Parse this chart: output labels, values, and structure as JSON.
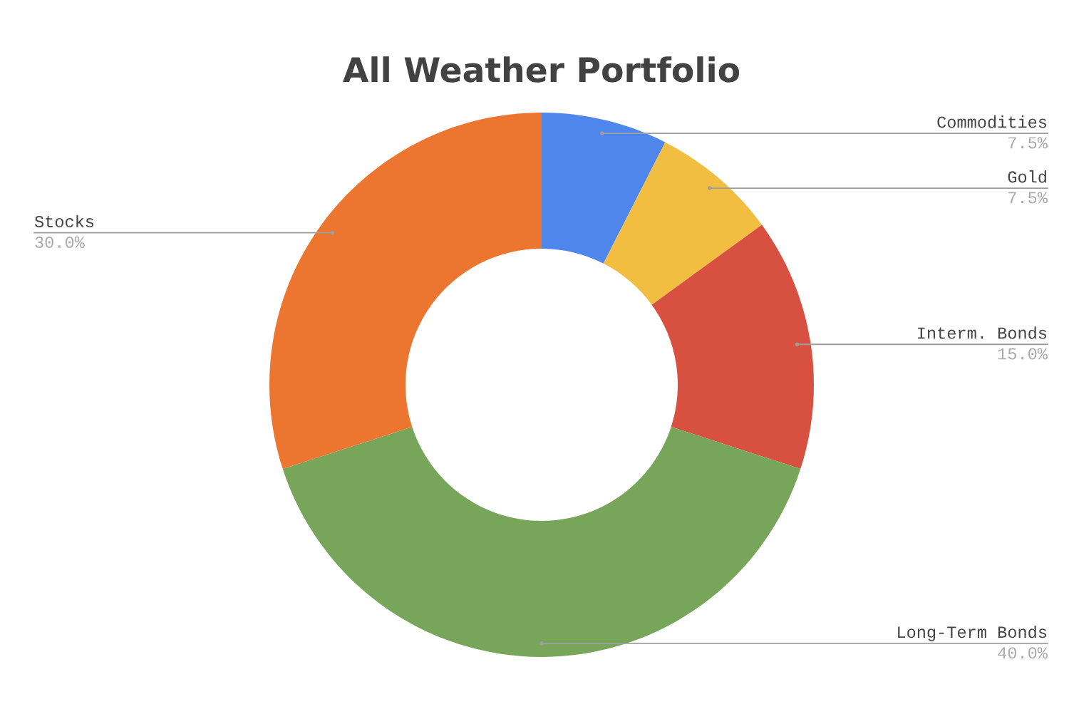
{
  "chart_data": {
    "type": "donut",
    "title": "All Weather Portfolio",
    "categories": [
      "Commodities",
      "Gold",
      "Interm. Bonds",
      "Long-Term Bonds",
      "Stocks"
    ],
    "values": [
      7.5,
      7.5,
      15.0,
      40.0,
      30.0
    ],
    "colors": [
      "#4f86ec",
      "#f2be42",
      "#d85040",
      "#77a65a",
      "#ec7630"
    ],
    "value_labels": [
      "7.5%",
      "7.5%",
      "15.0%",
      "40.0%",
      "30.0%"
    ],
    "legend": false
  }
}
